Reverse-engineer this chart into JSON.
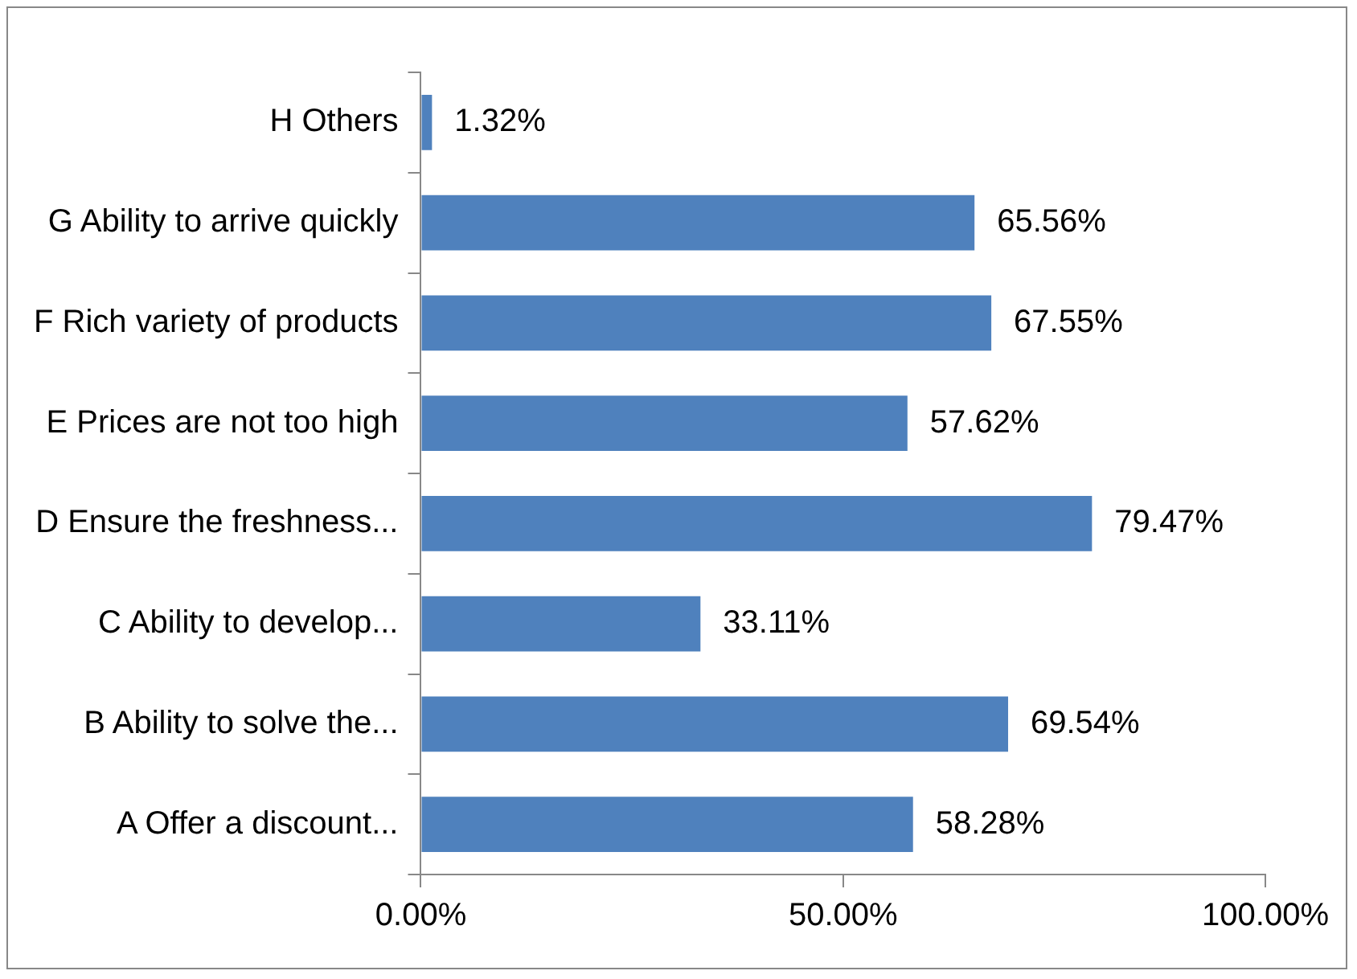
{
  "chart_data": {
    "type": "bar",
    "orientation": "horizontal",
    "categories": [
      "H Others",
      "G Ability to arrive quickly",
      "F Rich variety of products",
      "E Prices are not too high",
      "D Ensure the freshness...",
      "C Ability to develop...",
      "B Ability to solve the...",
      "A Offer a discount..."
    ],
    "values": [
      1.32,
      65.56,
      67.55,
      57.62,
      79.47,
      33.11,
      69.54,
      58.28
    ],
    "value_labels": [
      "1.32%",
      "65.56%",
      "67.55%",
      "57.62%",
      "79.47%",
      "33.11%",
      "69.54%",
      "58.28%"
    ],
    "color": "#4f81bd",
    "xlim": [
      0,
      100
    ],
    "xticks": [
      {
        "value": 0,
        "label": "0.00%"
      },
      {
        "value": 50,
        "label": "50.00%"
      },
      {
        "value": 100,
        "label": "100.00%"
      }
    ],
    "grid": false,
    "legend": false
  }
}
